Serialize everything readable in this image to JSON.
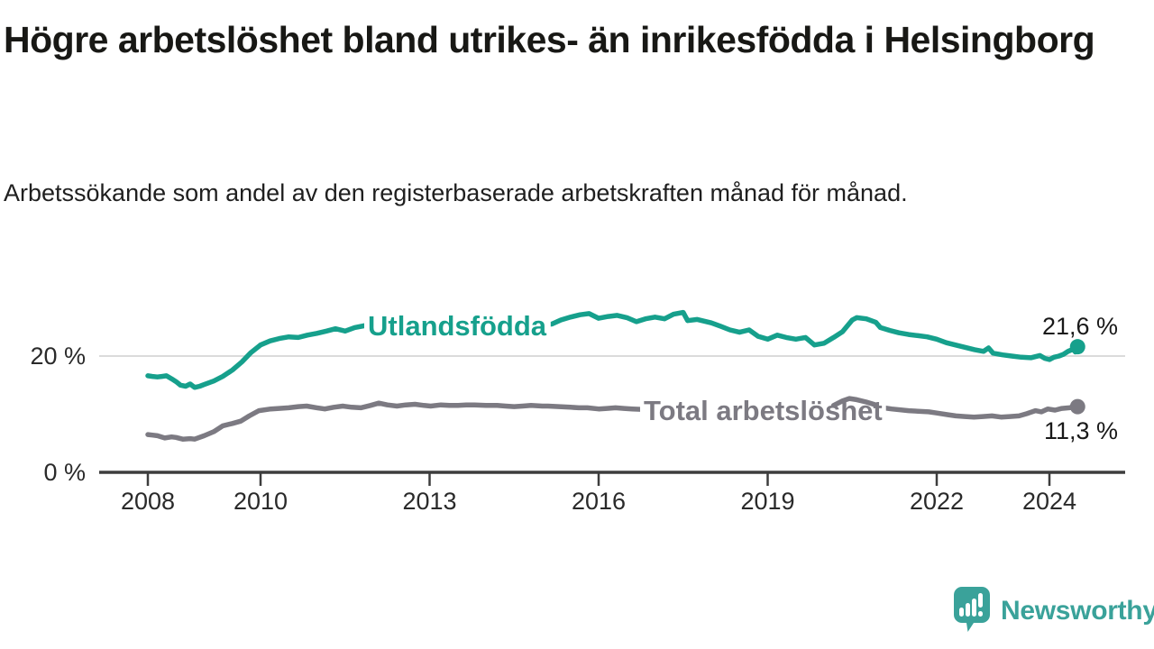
{
  "header": {
    "title": "Högre arbetslöshet bland utrikes- än inrikesfödda i Helsingborg",
    "subtitle": "Arbetssökande som andel av den registerbaserade arbetskraften månad för månad."
  },
  "footer": {
    "brand": "Newsworthy"
  },
  "colors": {
    "foreign_line": "#16a08c",
    "total_line": "#7c7a82",
    "axis": "#3d3d3d",
    "grid": "#dbdbdb",
    "tick_text": "#2a2a2a",
    "value_text": "#191919",
    "logo": "#3aa29a",
    "label_halo": "#ffffff"
  },
  "chart_data": {
    "type": "line",
    "title": "Högre arbetslöshet bland utrikes- än inrikesfödda i Helsingborg",
    "subtitle": "Arbetssökande som andel av den registerbaserade arbetskraften månad för månad.",
    "xlabel": "",
    "ylabel": "%",
    "xlim": [
      2008,
      2025.3
    ],
    "ylim": [
      0,
      29
    ],
    "grid": "horizontal-20-only",
    "legend_position": "inline-labels",
    "x_ticks": [
      2008,
      2010,
      2013,
      2016,
      2019,
      2022,
      2024
    ],
    "y_axis_labels": [
      {
        "value": 0,
        "label": "0 %"
      },
      {
        "value": 20,
        "label": "20 %"
      }
    ],
    "series": [
      {
        "name": "Utlandsfödda",
        "color_key": "foreign_line",
        "end_value": 21.6,
        "end_label": "21,6 %",
        "label_anchor": {
          "x": 408,
          "baseline_y": 372
        },
        "end_label_anchor": {
          "x": 1240,
          "baseline_y": 371
        },
        "points": [
          [
            2008.0,
            16.6
          ],
          [
            2008.08,
            16.5
          ],
          [
            2008.17,
            16.4
          ],
          [
            2008.25,
            16.5
          ],
          [
            2008.33,
            16.6
          ],
          [
            2008.42,
            16.1
          ],
          [
            2008.5,
            15.6
          ],
          [
            2008.58,
            15.0
          ],
          [
            2008.67,
            14.8
          ],
          [
            2008.75,
            15.2
          ],
          [
            2008.83,
            14.6
          ],
          [
            2008.92,
            14.8
          ],
          [
            2009.0,
            15.1
          ],
          [
            2009.17,
            15.7
          ],
          [
            2009.33,
            16.5
          ],
          [
            2009.5,
            17.6
          ],
          [
            2009.67,
            19.0
          ],
          [
            2009.83,
            20.6
          ],
          [
            2010.0,
            21.9
          ],
          [
            2010.17,
            22.6
          ],
          [
            2010.33,
            23.0
          ],
          [
            2010.5,
            23.3
          ],
          [
            2010.67,
            23.2
          ],
          [
            2010.83,
            23.6
          ],
          [
            2011.0,
            23.9
          ],
          [
            2011.17,
            24.3
          ],
          [
            2011.33,
            24.7
          ],
          [
            2011.5,
            24.3
          ],
          [
            2011.67,
            24.9
          ],
          [
            2011.83,
            25.2
          ],
          [
            2012.0,
            25.5
          ],
          [
            2012.17,
            25.9
          ],
          [
            2012.33,
            26.1
          ],
          [
            2012.5,
            26.0
          ],
          [
            2012.67,
            26.2
          ],
          [
            2012.83,
            26.4
          ],
          [
            2013.0,
            26.2
          ],
          [
            2013.17,
            26.0
          ],
          [
            2013.33,
            26.1
          ],
          [
            2013.5,
            25.9
          ],
          [
            2013.67,
            25.8
          ],
          [
            2013.83,
            25.9
          ],
          [
            2014.0,
            25.7
          ],
          [
            2014.17,
            25.6
          ],
          [
            2014.33,
            25.7
          ],
          [
            2014.5,
            25.5
          ],
          [
            2014.67,
            25.4
          ],
          [
            2014.83,
            25.5
          ],
          [
            2015.0,
            25.4
          ],
          [
            2015.17,
            25.5
          ],
          [
            2015.33,
            26.2
          ],
          [
            2015.5,
            26.7
          ],
          [
            2015.67,
            27.1
          ],
          [
            2015.83,
            27.3
          ],
          [
            2016.0,
            26.5
          ],
          [
            2016.17,
            26.8
          ],
          [
            2016.33,
            27.0
          ],
          [
            2016.5,
            26.6
          ],
          [
            2016.67,
            25.9
          ],
          [
            2016.83,
            26.4
          ],
          [
            2017.0,
            26.7
          ],
          [
            2017.17,
            26.4
          ],
          [
            2017.33,
            27.2
          ],
          [
            2017.5,
            27.5
          ],
          [
            2017.58,
            26.1
          ],
          [
            2017.75,
            26.3
          ],
          [
            2018.0,
            25.7
          ],
          [
            2018.17,
            25.1
          ],
          [
            2018.33,
            24.5
          ],
          [
            2018.5,
            24.1
          ],
          [
            2018.67,
            24.5
          ],
          [
            2018.83,
            23.4
          ],
          [
            2019.0,
            22.9
          ],
          [
            2019.17,
            23.6
          ],
          [
            2019.33,
            23.2
          ],
          [
            2019.5,
            22.9
          ],
          [
            2019.67,
            23.2
          ],
          [
            2019.83,
            21.9
          ],
          [
            2020.0,
            22.2
          ],
          [
            2020.17,
            23.2
          ],
          [
            2020.33,
            24.2
          ],
          [
            2020.5,
            26.2
          ],
          [
            2020.58,
            26.6
          ],
          [
            2020.75,
            26.4
          ],
          [
            2020.92,
            25.8
          ],
          [
            2021.0,
            24.9
          ],
          [
            2021.17,
            24.4
          ],
          [
            2021.33,
            24.0
          ],
          [
            2021.5,
            23.7
          ],
          [
            2021.67,
            23.5
          ],
          [
            2021.83,
            23.3
          ],
          [
            2022.0,
            22.9
          ],
          [
            2022.17,
            22.3
          ],
          [
            2022.33,
            21.9
          ],
          [
            2022.5,
            21.5
          ],
          [
            2022.67,
            21.1
          ],
          [
            2022.83,
            20.8
          ],
          [
            2022.92,
            21.4
          ],
          [
            2023.0,
            20.5
          ],
          [
            2023.17,
            20.2
          ],
          [
            2023.33,
            20.0
          ],
          [
            2023.5,
            19.8
          ],
          [
            2023.67,
            19.7
          ],
          [
            2023.83,
            20.1
          ],
          [
            2023.92,
            19.6
          ],
          [
            2024.0,
            19.4
          ],
          [
            2024.08,
            19.8
          ],
          [
            2024.17,
            20.0
          ],
          [
            2024.25,
            20.3
          ],
          [
            2024.33,
            20.8
          ],
          [
            2024.42,
            21.2
          ],
          [
            2024.46,
            20.7
          ],
          [
            2024.5,
            21.6
          ]
        ]
      },
      {
        "name": "Total arbetslöshet",
        "color_key": "total_line",
        "end_value": 11.3,
        "end_label": "11,3 %",
        "label_anchor": {
          "x": 714,
          "baseline_y": 466
        },
        "end_label_anchor": {
          "x": 1240,
          "baseline_y": 487
        },
        "peak_overdraw": [
          2020.1,
          2020.95
        ],
        "points": [
          [
            2008.0,
            6.5
          ],
          [
            2008.08,
            6.4
          ],
          [
            2008.17,
            6.3
          ],
          [
            2008.3,
            5.9
          ],
          [
            2008.42,
            6.1
          ],
          [
            2008.5,
            6.0
          ],
          [
            2008.62,
            5.7
          ],
          [
            2008.75,
            5.8
          ],
          [
            2008.83,
            5.7
          ],
          [
            2009.0,
            6.3
          ],
          [
            2009.17,
            7.0
          ],
          [
            2009.33,
            8.0
          ],
          [
            2009.5,
            8.4
          ],
          [
            2009.65,
            8.8
          ],
          [
            2009.8,
            9.7
          ],
          [
            2009.97,
            10.6
          ],
          [
            2010.18,
            10.9
          ],
          [
            2010.33,
            11.0
          ],
          [
            2010.5,
            11.1
          ],
          [
            2010.67,
            11.3
          ],
          [
            2010.82,
            11.4
          ],
          [
            2011.0,
            11.1
          ],
          [
            2011.14,
            10.9
          ],
          [
            2011.3,
            11.2
          ],
          [
            2011.46,
            11.4
          ],
          [
            2011.62,
            11.2
          ],
          [
            2011.78,
            11.1
          ],
          [
            2011.95,
            11.5
          ],
          [
            2012.1,
            11.9
          ],
          [
            2012.25,
            11.6
          ],
          [
            2012.42,
            11.4
          ],
          [
            2012.58,
            11.6
          ],
          [
            2012.74,
            11.7
          ],
          [
            2012.9,
            11.5
          ],
          [
            2013.02,
            11.4
          ],
          [
            2013.2,
            11.6
          ],
          [
            2013.35,
            11.5
          ],
          [
            2013.5,
            11.5
          ],
          [
            2013.65,
            11.6
          ],
          [
            2013.8,
            11.6
          ],
          [
            2014.0,
            11.5
          ],
          [
            2014.2,
            11.5
          ],
          [
            2014.35,
            11.4
          ],
          [
            2014.5,
            11.3
          ],
          [
            2014.65,
            11.4
          ],
          [
            2014.8,
            11.5
          ],
          [
            2015.0,
            11.4
          ],
          [
            2015.1,
            11.4
          ],
          [
            2015.3,
            11.3
          ],
          [
            2015.5,
            11.2
          ],
          [
            2015.65,
            11.1
          ],
          [
            2015.8,
            11.1
          ],
          [
            2016.0,
            10.9
          ],
          [
            2016.15,
            11.0
          ],
          [
            2016.3,
            11.1
          ],
          [
            2016.45,
            11.0
          ],
          [
            2016.6,
            10.9
          ],
          [
            2016.8,
            10.8
          ],
          [
            2017.0,
            10.7
          ],
          [
            2017.33,
            10.6
          ],
          [
            2017.67,
            10.5
          ],
          [
            2018.0,
            10.4
          ],
          [
            2018.33,
            10.3
          ],
          [
            2018.67,
            10.2
          ],
          [
            2019.0,
            10.1
          ],
          [
            2019.33,
            10.0
          ],
          [
            2019.67,
            10.1
          ],
          [
            2019.83,
            10.3
          ],
          [
            2020.0,
            10.7
          ],
          [
            2020.17,
            11.5
          ],
          [
            2020.33,
            12.3
          ],
          [
            2020.45,
            12.7
          ],
          [
            2020.58,
            12.5
          ],
          [
            2020.75,
            12.1
          ],
          [
            2020.92,
            11.6
          ],
          [
            2021.05,
            11.1
          ],
          [
            2021.2,
            10.9
          ],
          [
            2021.5,
            10.6
          ],
          [
            2021.86,
            10.4
          ],
          [
            2022.0,
            10.2
          ],
          [
            2022.2,
            9.9
          ],
          [
            2022.34,
            9.7
          ],
          [
            2022.5,
            9.6
          ],
          [
            2022.66,
            9.5
          ],
          [
            2022.82,
            9.6
          ],
          [
            2022.98,
            9.7
          ],
          [
            2023.14,
            9.5
          ],
          [
            2023.3,
            9.6
          ],
          [
            2023.46,
            9.7
          ],
          [
            2023.6,
            10.1
          ],
          [
            2023.75,
            10.6
          ],
          [
            2023.86,
            10.4
          ],
          [
            2023.97,
            10.9
          ],
          [
            2024.1,
            10.7
          ],
          [
            2024.22,
            11.0
          ],
          [
            2024.35,
            11.1
          ],
          [
            2024.5,
            11.3
          ]
        ]
      }
    ]
  }
}
